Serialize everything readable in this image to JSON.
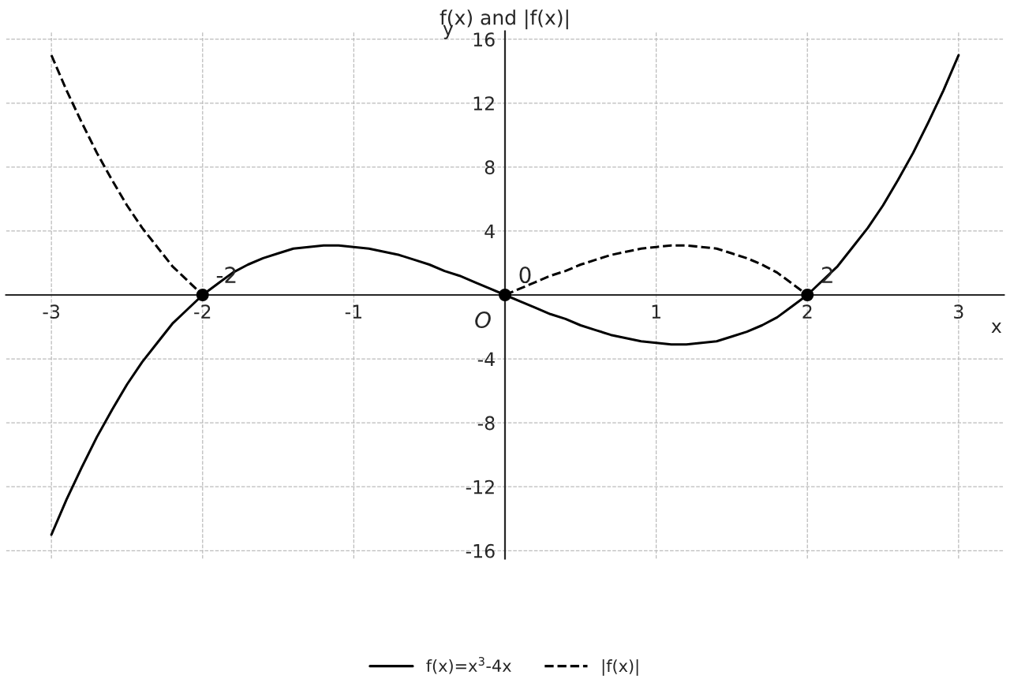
{
  "chart_data": {
    "type": "line",
    "title": "f(x) and |f(x)|",
    "xlabel": "x",
    "ylabel": "y",
    "xlim": [
      -3.3,
      3.3
    ],
    "ylim": [
      -16.5,
      16.5
    ],
    "xticks": [
      -3,
      -2,
      -1,
      1,
      2,
      3
    ],
    "yticks": [
      -16,
      -12,
      -8,
      -4,
      4,
      8,
      12,
      16
    ],
    "grid": true,
    "legend": "bottom",
    "series": [
      {
        "name": "f(x)=x$^{3}$-4x",
        "color": "#000000",
        "line_style": "solid",
        "marker": "none",
        "x": [
          -3,
          -2.9,
          -2.8,
          -2.7,
          -2.6,
          -2.5,
          -2.4,
          -2.3,
          -2.2,
          -2.1,
          -2,
          -1.9,
          -1.8,
          -1.7,
          -1.6,
          -1.5,
          -1.4,
          -1.3,
          -1.2,
          -1.1,
          -1,
          -0.9,
          -0.8,
          -0.7,
          -0.6,
          -0.5,
          -0.4,
          -0.3,
          -0.2,
          -0.1,
          0,
          0.1,
          0.2,
          0.3,
          0.4,
          0.5,
          0.6,
          0.7,
          0.8,
          0.9,
          1,
          1.1,
          1.2,
          1.3,
          1.4,
          1.5,
          1.6,
          1.7,
          1.8,
          1.9,
          2,
          2.1,
          2.2,
          2.3,
          2.4,
          2.5,
          2.6,
          2.7,
          2.8,
          2.9,
          3
        ],
        "values": [
          -15,
          -12.8,
          -10.8,
          -8.9,
          -7.2,
          -5.6,
          -4.2,
          -3.0,
          -1.8,
          -0.9,
          0,
          0.7,
          1.4,
          1.9,
          2.3,
          2.6,
          2.9,
          3.0,
          3.1,
          3.1,
          3,
          2.9,
          2.7,
          2.5,
          2.2,
          1.9,
          1.5,
          1.2,
          0.8,
          0.4,
          0,
          -0.4,
          -0.8,
          -1.2,
          -1.5,
          -1.9,
          -2.2,
          -2.5,
          -2.7,
          -2.9,
          -3,
          -3.1,
          -3.1,
          -3.0,
          -2.9,
          -2.6,
          -2.3,
          -1.9,
          -1.4,
          -0.7,
          0,
          0.9,
          1.8,
          3.0,
          4.2,
          5.6,
          7.2,
          8.9,
          10.8,
          12.8,
          15
        ]
      },
      {
        "name": "|f(x)|",
        "color": "#000000",
        "line_style": "dashed",
        "marker": "none",
        "x": [
          -3,
          -2.9,
          -2.8,
          -2.7,
          -2.6,
          -2.5,
          -2.4,
          -2.3,
          -2.2,
          -2.1,
          -2,
          -1.5,
          0,
          0.1,
          0.2,
          0.3,
          0.4,
          0.5,
          0.6,
          0.7,
          0.8,
          0.9,
          1,
          1.1,
          1.2,
          1.3,
          1.4,
          1.5,
          1.6,
          1.7,
          1.8,
          1.9,
          2
        ],
        "values": [
          15,
          12.8,
          10.8,
          8.9,
          7.2,
          5.6,
          4.2,
          3.0,
          1.8,
          0.9,
          0,
          null,
          0,
          0.4,
          0.8,
          1.2,
          1.5,
          1.9,
          2.2,
          2.5,
          2.7,
          2.9,
          3,
          3.1,
          3.1,
          3.0,
          2.9,
          2.6,
          2.3,
          1.9,
          1.4,
          0.7,
          0
        ]
      },
      {
        "type": "scatter",
        "color": "#000000",
        "marker": "circle",
        "x": [
          -2,
          0,
          2
        ],
        "values": [
          0,
          0,
          0
        ]
      }
    ],
    "annotations": [
      {
        "text": "-2",
        "x": -2,
        "y": 0
      },
      {
        "text": "0",
        "x": 0,
        "y": 0
      },
      {
        "text": "2",
        "x": 2,
        "y": 0
      },
      "O"
    ]
  }
}
